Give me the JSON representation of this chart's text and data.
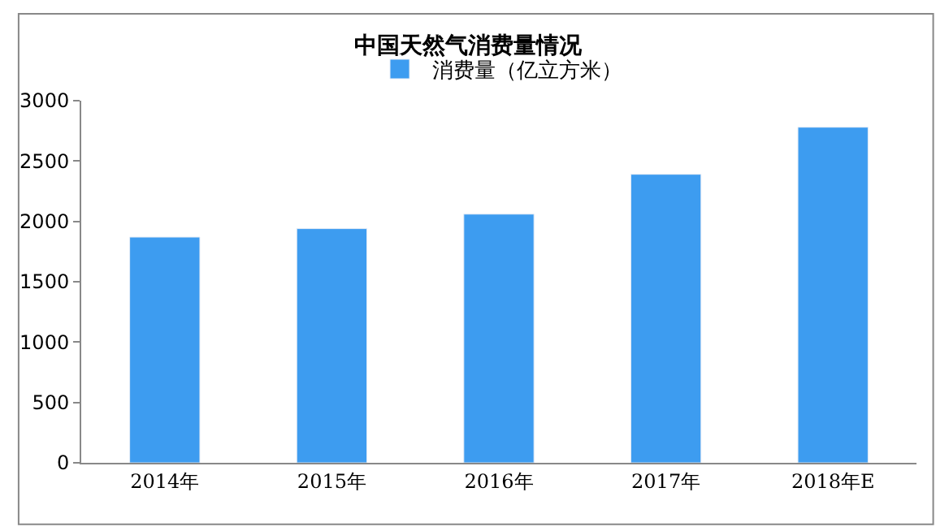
{
  "chart_data": {
    "type": "bar",
    "title": "中国天然气消费量情况",
    "categories": [
      "2014年",
      "2015年",
      "2016年",
      "2017年",
      "2018年E"
    ],
    "series": [
      {
        "name": "消费量（亿立方米）",
        "color": "#3d9cf0",
        "values": [
          1870,
          1940,
          2060,
          2390,
          2780
        ]
      }
    ],
    "ylim": [
      0,
      3000
    ],
    "yticks": [
      0,
      500,
      1000,
      1500,
      2000,
      2500,
      3000
    ],
    "grid": false,
    "legend": "top"
  }
}
